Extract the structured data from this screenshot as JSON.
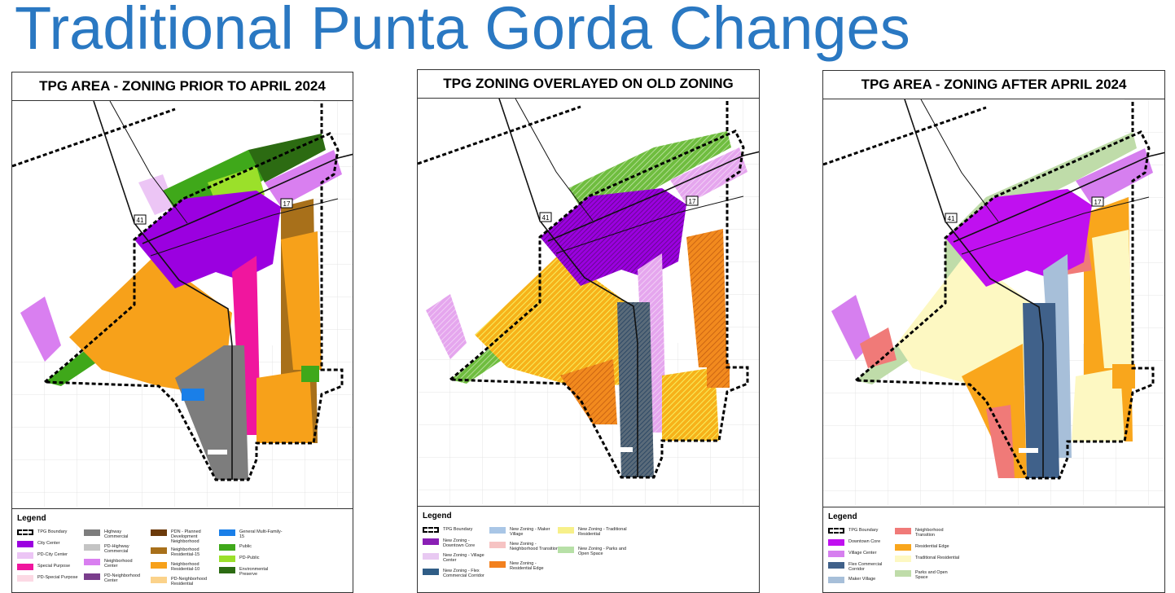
{
  "slide": {
    "title": "Traditional Punta Gorda Changes"
  },
  "map_labels": {
    "route_41": "41",
    "route_17": "17"
  },
  "panels": [
    {
      "title": "TPG AREA - ZONING PRIOR TO APRIL 2024",
      "legend_title": "Legend",
      "legend": [
        {
          "label": "TPG Boundary",
          "color": "boundary"
        },
        {
          "label": "City Center",
          "color": "#9b00e0"
        },
        {
          "label": "PD-City Center",
          "color": "#ecc5f5"
        },
        {
          "label": "Special Purpose",
          "color": "#f0169e"
        },
        {
          "label": "PD-Special Purpose",
          "color": "#fcd9e4"
        },
        {
          "label": "Highway Commercial",
          "color": "#7d7d7d"
        },
        {
          "label": "PD-Highway Commercial",
          "color": "#c4c4c4"
        },
        {
          "label": "Neighborhood Center",
          "color": "#d97ff0"
        },
        {
          "label": "PD-Neighborhood Center",
          "color": "#7a3d8c"
        },
        {
          "label": "PDN - Planned Development Neighborhood",
          "color": "#6b3a0a"
        },
        {
          "label": "Neighborhood Residential-15",
          "color": "#a8701a"
        },
        {
          "label": "Neighborhood Residential-10",
          "color": "#f7a11a"
        },
        {
          "label": "PD-Neighborhood Residential",
          "color": "#fbd28a"
        },
        {
          "label": "General Multi-Family-15",
          "color": "#1a7fe8"
        },
        {
          "label": "Public",
          "color": "#3fa81a"
        },
        {
          "label": "PD-Public",
          "color": "#9be02a"
        },
        {
          "label": "Environmental Preserve",
          "color": "#2c6b12"
        }
      ]
    },
    {
      "title": "TPG ZONING OVERLAYED ON OLD ZONING",
      "legend_title": "Legend",
      "legend": [
        {
          "label": "TPG Boundary",
          "color": "boundary"
        },
        {
          "label": "New Zoning - Downtown Core",
          "color": "#8a1fb5"
        },
        {
          "label": "New Zoning - Village Center",
          "color": "#e8c9f2"
        },
        {
          "label": "New Zoning - Flex Commercial Corridor",
          "color": "#2f5d86"
        },
        {
          "label": "New Zoning - Maker Village",
          "color": "#a9c6e6"
        },
        {
          "label": "New Zoning - Neighborhood Transition",
          "color": "#f6c3c3"
        },
        {
          "label": "New Zoning - Residential Edge",
          "color": "#f2801e"
        },
        {
          "label": "New Zoning - Traditional Residential",
          "color": "#f7f08a"
        },
        {
          "label": "New Zoning - Parks and Open Space",
          "color": "#b7e0a7"
        }
      ]
    },
    {
      "title": "TPG AREA - ZONING AFTER APRIL 2024",
      "legend_title": "Legend",
      "legend": [
        {
          "label": "TPG Boundary",
          "color": "boundary"
        },
        {
          "label": "Downtown Core",
          "color": "#c010f0"
        },
        {
          "label": "Village Center",
          "color": "#d67fef"
        },
        {
          "label": "Flex Commercial Corridor",
          "color": "#40618a"
        },
        {
          "label": "Maker Village",
          "color": "#a7bfd9"
        },
        {
          "label": "Neighborhood Transition",
          "color": "#f07a78"
        },
        {
          "label": "Residential Edge",
          "color": "#f9a61c"
        },
        {
          "label": "Traditional Residential",
          "color": "#fdf8c2"
        },
        {
          "label": "Parks and Open Space",
          "color": "#bfdca9"
        }
      ]
    }
  ]
}
